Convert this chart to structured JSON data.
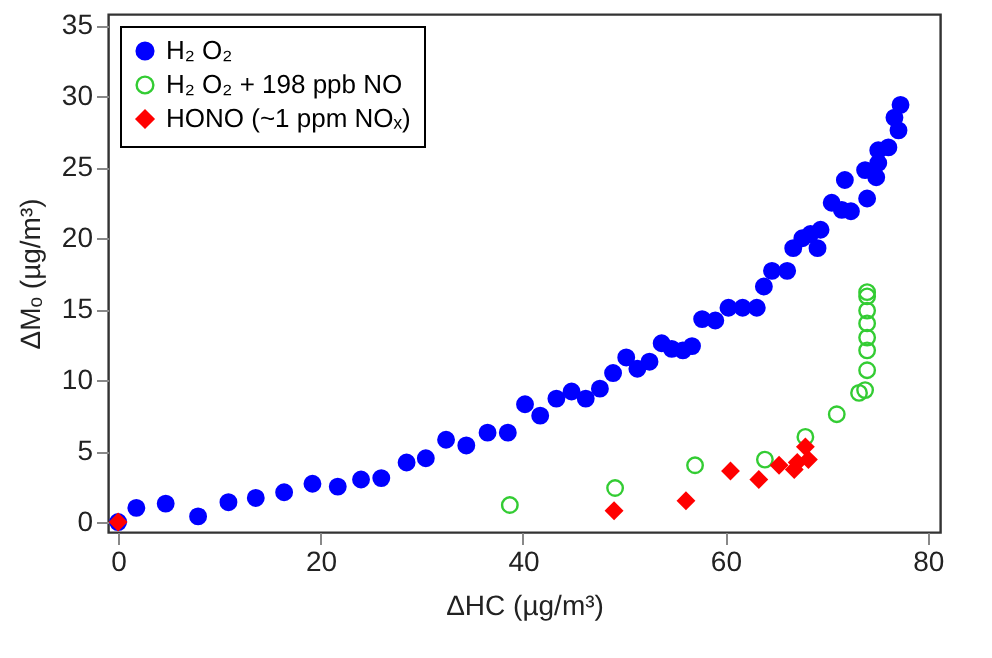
{
  "chart_data": {
    "type": "scatter",
    "xlabel": "ΔHC (µg/m³)",
    "ylabel": "ΔMₒ (µg/m³)",
    "xlim": [
      -1,
      81.2
    ],
    "ylim": [
      -0.7,
      35.8
    ],
    "xticks": [
      0,
      20,
      40,
      60,
      80
    ],
    "yticks": [
      0,
      5,
      10,
      15,
      20,
      25,
      30,
      35
    ],
    "grid": false,
    "legend": "top left",
    "series": [
      {
        "name": "H₂ O₂",
        "color": "#0000ff",
        "marker": "circle",
        "x": [
          0,
          1.8,
          4.7,
          7.9,
          10.9,
          13.6,
          16.4,
          19.2,
          21.7,
          24,
          26,
          28.5,
          30.4,
          32.4,
          34.4,
          36.5,
          38.5,
          40.2,
          41.7,
          43.3,
          44.8,
          46.2,
          47.6,
          48.9,
          50.2,
          51.3,
          52.5,
          53.7,
          54.7,
          55.8,
          56.7,
          57.7,
          59,
          60.3,
          61.7,
          63.1,
          63.8,
          64.6,
          66.1,
          66.7,
          67.6,
          68.4,
          69.1,
          69.4,
          70.5,
          71.5,
          72.4,
          74,
          71.8,
          73.8,
          74.9,
          75.1,
          75.1,
          76.1,
          76.7,
          77.1,
          77.3
        ],
        "values": [
          0,
          1.0,
          1.3,
          0.4,
          1.4,
          1.7,
          2.1,
          2.7,
          2.5,
          3,
          3.1,
          4.2,
          4.5,
          5.8,
          5.4,
          6.3,
          6.3,
          8.3,
          7.5,
          8.7,
          9.2,
          8.7,
          9.4,
          10.5,
          11.6,
          10.8,
          11.3,
          12.6,
          12.2,
          12.1,
          12.4,
          14.3,
          14.2,
          15.1,
          15.1,
          15.1,
          16.6,
          17.7,
          17.7,
          19.3,
          20,
          20.3,
          19.3,
          20.6,
          22.5,
          22,
          21.9,
          22.8,
          24.1,
          24.8,
          24.3,
          25.3,
          26.2,
          26.4,
          28.5,
          27.6,
          29.4
        ]
      },
      {
        "name": "H₂ O₂ + 198 ppb NO",
        "color": "#33cc33",
        "marker": "circle",
        "x": [
          38.7,
          49.1,
          57,
          63.9,
          67.9,
          71,
          73.2,
          73.8,
          74,
          74,
          74,
          74,
          74,
          74,
          74
        ],
        "values": [
          1.2,
          2.4,
          4.0,
          4.4,
          6.0,
          7.6,
          9.1,
          9.3,
          10.7,
          12.1,
          13.0,
          14.0,
          14.9,
          15.9,
          16.2
        ]
      },
      {
        "name": "HONO (~1 ppm NOₓ)",
        "color": "#ff0000",
        "marker": "diamond",
        "x": [
          0,
          49,
          56.1,
          60.5,
          63.3,
          65.3,
          66.8,
          67.1,
          67.9,
          68.2
        ],
        "values": [
          0,
          0.8,
          1.5,
          3.6,
          3.0,
          4.0,
          3.7,
          4.2,
          5.3,
          4.4
        ]
      }
    ]
  }
}
